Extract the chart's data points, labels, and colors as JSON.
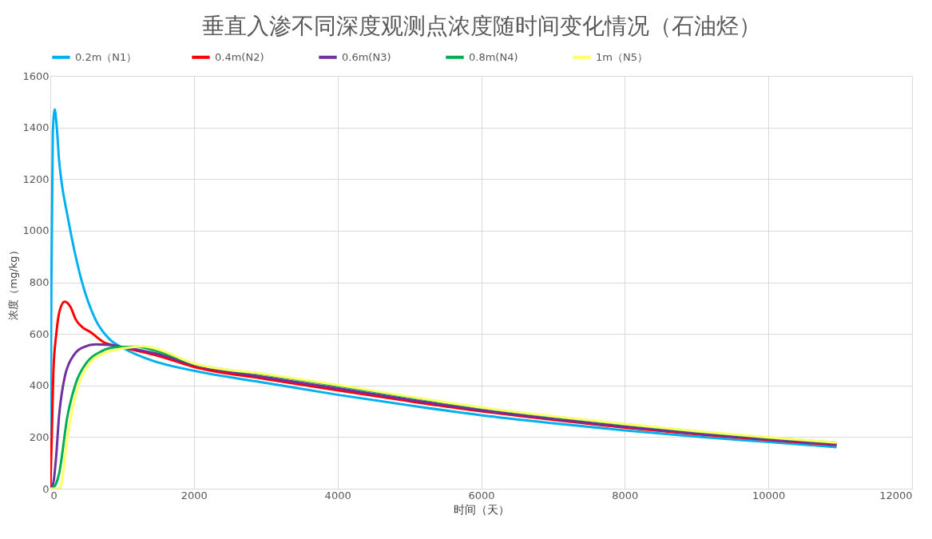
{
  "chart_data": {
    "type": "line",
    "title": "垂直入渗不同深度观测点浓度随时间变化情况（石油烃）",
    "xlabel": "时间（天）",
    "ylabel": "浓度（mg/kg）",
    "xlim": [
      0,
      12000
    ],
    "xticks": [
      0,
      2000,
      4000,
      6000,
      8000,
      10000,
      12000
    ],
    "ylim": [
      0,
      1600
    ],
    "yticks": [
      0,
      200,
      400,
      600,
      800,
      1000,
      1200,
      1400,
      1600
    ],
    "grid": true,
    "legend": "top",
    "marker": "none",
    "line_style": "solid",
    "series": [
      {
        "name": "0.2m（N1）",
        "color": "#00b0f0",
        "x": [
          0,
          15,
          35,
          62,
          90,
          121,
          160,
          238,
          330,
          434,
          630,
          826,
          1021,
          1413,
          2000,
          3000,
          4000,
          5000,
          6000,
          7000,
          8000,
          9000,
          10000,
          10950
        ],
        "values": [
          0,
          800,
          1380,
          1470,
          1400,
          1276,
          1182,
          1060,
          930,
          808,
          655,
          579,
          544,
          497,
          457,
          410,
          364,
          323,
          285,
          254,
          226,
          202,
          181,
          161
        ]
      },
      {
        "name": "0.4m(N2)",
        "color": "#ff0000",
        "x": [
          0,
          20,
          43,
          82,
          130,
          200,
          280,
          356,
          450,
          552,
          748,
          943,
          1500,
          2000,
          3000,
          4000,
          5000,
          6000,
          7000,
          8000,
          9000,
          10000,
          10950
        ],
        "values": [
          0,
          200,
          456,
          597,
          690,
          725,
          705,
          655,
          625,
          608,
          567,
          552,
          515,
          472,
          425,
          381,
          339,
          300,
          267,
          237,
          211,
          189,
          169
        ]
      },
      {
        "name": "0.6m(N3)",
        "color": "#7030a0",
        "x": [
          0,
          40,
          80,
          121,
          160,
          200,
          317,
          474,
          630,
          826,
          943,
          1500,
          2000,
          3000,
          4000,
          5000,
          6000,
          7000,
          8000,
          9000,
          10000,
          10950
        ],
        "values": [
          0,
          20,
          120,
          280,
          370,
          432,
          514,
          550,
          559,
          557,
          552,
          522,
          480,
          432,
          389,
          345,
          305,
          271,
          241,
          214,
          192,
          172
        ]
      },
      {
        "name": "0.8m(N4)",
        "color": "#00b050",
        "x": [
          0,
          60,
          121,
          238,
          356,
          513,
          708,
          943,
          1200,
          1500,
          2000,
          3000,
          4000,
          5000,
          6000,
          7000,
          8000,
          9000,
          10000,
          10950
        ],
        "values": [
          0,
          10,
          57,
          280,
          409,
          491,
          532,
          549,
          550,
          532,
          484,
          442,
          399,
          355,
          313,
          279,
          249,
          221,
          197,
          178
        ]
      },
      {
        "name": "1m（N5）",
        "color": "#ffff66",
        "x": [
          0,
          70,
          140,
          238,
          356,
          513,
          708,
          1021,
          1300,
          1500,
          2000,
          3000,
          4000,
          5000,
          6000,
          7000,
          8000,
          9000,
          10000,
          10950
        ],
        "values": [
          0,
          0,
          5,
          198,
          365,
          473,
          520,
          544,
          552,
          540,
          485,
          444,
          402,
          357,
          315,
          281,
          251,
          223,
          199,
          179
        ]
      }
    ]
  }
}
